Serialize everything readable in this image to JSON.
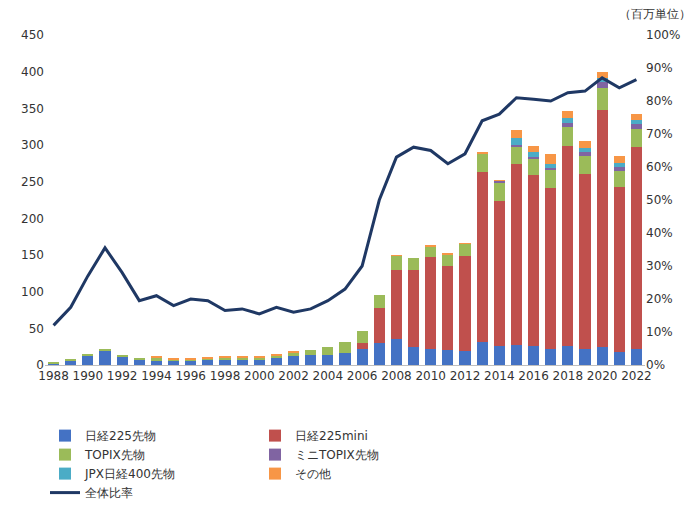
{
  "chart_data": {
    "type": "bar",
    "stacked": true,
    "grid": false,
    "legend": "bottom",
    "annotations": [
      "（百万単位）"
    ],
    "categories": [
      "1988",
      null,
      "1990",
      null,
      "1992",
      null,
      "1994",
      null,
      "1996",
      null,
      "1998",
      null,
      "2000",
      null,
      "2002",
      null,
      "2004",
      null,
      "2006",
      null,
      "2008",
      null,
      "2010",
      null,
      "2012",
      null,
      "2014",
      null,
      "2016",
      null,
      "2018",
      null,
      "2020",
      null,
      "2022"
    ],
    "ylim": [
      0,
      450
    ],
    "yticks": [
      0,
      50,
      100,
      150,
      200,
      250,
      300,
      350,
      400,
      450
    ],
    "y2lim": [
      0,
      100
    ],
    "y2ticks": [
      {
        "value": 0,
        "label": "0%"
      },
      {
        "value": 10,
        "label": "10%"
      },
      {
        "value": 20,
        "label": "20%"
      },
      {
        "value": 30,
        "label": "30%"
      },
      {
        "value": 40,
        "label": "40%"
      },
      {
        "value": 50,
        "label": "50%"
      },
      {
        "value": 60,
        "label": "60%"
      },
      {
        "value": 70,
        "label": "70%"
      },
      {
        "value": 80,
        "label": "80%"
      },
      {
        "value": 90,
        "label": "90%"
      },
      {
        "value": 100,
        "label": "100%"
      }
    ],
    "series": [
      {
        "name": "日経225先物",
        "type": "bar",
        "color": "#4472c4",
        "values": [
          2,
          6,
          13,
          20,
          11,
          8,
          6,
          6,
          6,
          7,
          8,
          8,
          8,
          10,
          12,
          13,
          14,
          17,
          22,
          30,
          35,
          25,
          22,
          20,
          19,
          31,
          26,
          27,
          26,
          22,
          26,
          22,
          25,
          18,
          22
        ]
      },
      {
        "name": "日経225mini",
        "type": "bar",
        "color": "#c0504d",
        "values": [
          0,
          0,
          0,
          0,
          0,
          0,
          0,
          0,
          0,
          0,
          0,
          0,
          0,
          0,
          0,
          0,
          0,
          0,
          8,
          48,
          95,
          105,
          125,
          115,
          130,
          232,
          198,
          247,
          233,
          220,
          273,
          238,
          323,
          225,
          275
        ]
      },
      {
        "name": "TOPIX先物",
        "type": "bar",
        "color": "#9bbb59",
        "values": [
          1,
          2,
          2,
          2,
          2,
          2,
          3,
          2,
          2,
          2,
          2,
          2,
          2,
          3,
          5,
          8,
          10,
          14,
          16,
          18,
          19,
          16,
          15,
          16,
          16,
          25,
          24,
          24,
          23,
          24,
          25,
          25,
          30,
          22,
          25
        ]
      },
      {
        "name": "ミニTOPIX先物",
        "type": "bar",
        "color": "#8064a2",
        "values": [
          0,
          0,
          0,
          0,
          0,
          0,
          0,
          0,
          0,
          0,
          0,
          0,
          0,
          0,
          0,
          0,
          0,
          0,
          0,
          0,
          0,
          0,
          0,
          0,
          0,
          0,
          3,
          2,
          2,
          2,
          6,
          6,
          8,
          5,
          7
        ]
      },
      {
        "name": "JPX日経400先物",
        "type": "bar",
        "color": "#4bacc6",
        "values": [
          0,
          0,
          0,
          0,
          0,
          0,
          0,
          0,
          0,
          0,
          0,
          0,
          0,
          0,
          0,
          0,
          0,
          0,
          0,
          0,
          0,
          0,
          0,
          0,
          0,
          0,
          0,
          9,
          6,
          6,
          7,
          5,
          6,
          5,
          5
        ]
      },
      {
        "name": "その他",
        "type": "bar",
        "color": "#f79646",
        "values": [
          0,
          0,
          0,
          0,
          0,
          0,
          3,
          2,
          2,
          2,
          2,
          2,
          2,
          2,
          1,
          0,
          0,
          0,
          0,
          0,
          1,
          0,
          1,
          1,
          1,
          2,
          1,
          12,
          9,
          14,
          9,
          9,
          8,
          10,
          8
        ]
      },
      {
        "name": "全体比率",
        "type": "line",
        "axis": "y2",
        "color": "#1f3864",
        "line_style": "solid",
        "values": [
          12,
          17.5,
          27,
          35.5,
          28,
          19.5,
          21,
          18,
          20,
          19.5,
          16.5,
          17,
          15.5,
          17.5,
          16,
          17,
          19.5,
          23,
          30,
          50,
          63,
          66,
          65,
          61,
          64,
          74,
          76,
          81,
          80.5,
          80,
          82.5,
          83,
          87,
          84,
          86.5
        ]
      }
    ]
  }
}
